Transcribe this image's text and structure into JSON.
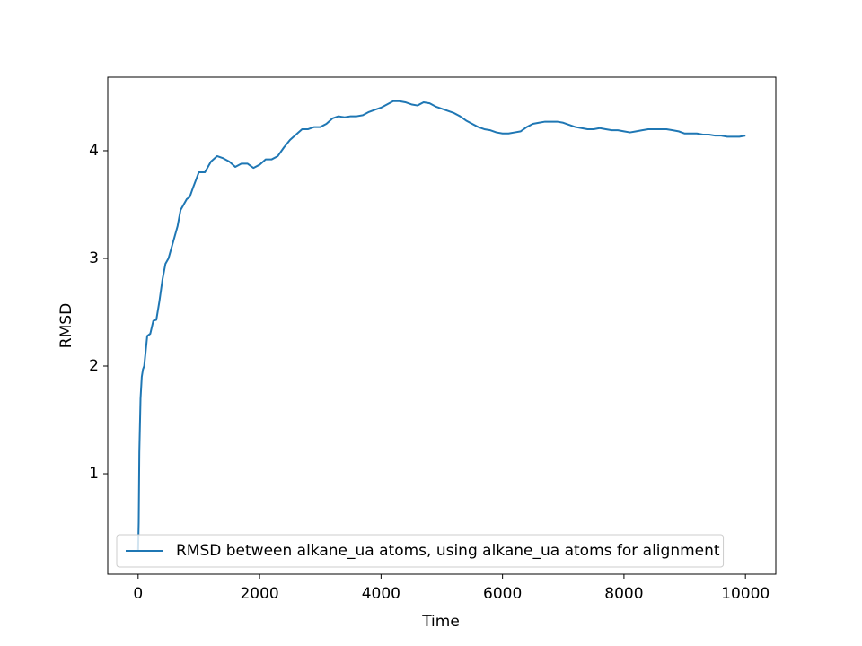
{
  "chart_data": {
    "type": "line",
    "xlabel": "Time",
    "ylabel": "RMSD",
    "xlim": [
      -500,
      10500
    ],
    "ylim": [
      0.067,
      4.683
    ],
    "xticks": [
      0,
      2000,
      4000,
      6000,
      8000,
      10000
    ],
    "yticks": [
      1,
      2,
      3,
      4
    ],
    "legend_loc": "lower right",
    "x": [
      0,
      10,
      20,
      40,
      60,
      80,
      100,
      150,
      200,
      250,
      300,
      350,
      400,
      450,
      500,
      550,
      600,
      650,
      700,
      750,
      800,
      850,
      900,
      1000,
      1100,
      1200,
      1300,
      1400,
      1500,
      1600,
      1700,
      1800,
      1900,
      2000,
      2100,
      2200,
      2300,
      2400,
      2500,
      2600,
      2700,
      2800,
      2900,
      3000,
      3100,
      3200,
      3300,
      3400,
      3500,
      3600,
      3700,
      3800,
      3900,
      4000,
      4100,
      4200,
      4300,
      4400,
      4500,
      4600,
      4700,
      4800,
      4900,
      5000,
      5100,
      5200,
      5300,
      5400,
      5500,
      5600,
      5700,
      5800,
      5900,
      6000,
      6100,
      6200,
      6300,
      6400,
      6500,
      6600,
      6700,
      6800,
      6900,
      7000,
      7100,
      7200,
      7300,
      7400,
      7500,
      7600,
      7700,
      7800,
      7900,
      8000,
      8100,
      8200,
      8300,
      8400,
      8500,
      8600,
      8700,
      8800,
      8900,
      9000,
      9100,
      9200,
      9300,
      9400,
      9500,
      9600,
      9700,
      9800,
      9900,
      10000
    ],
    "series": [
      {
        "name": "RMSD between alkane_ua atoms, using alkane_ua atoms for alignment",
        "color": "#1f77b4",
        "values": [
          0.28,
          0.55,
          1.2,
          1.7,
          1.9,
          1.97,
          2.0,
          2.28,
          2.3,
          2.42,
          2.43,
          2.6,
          2.8,
          2.95,
          3.0,
          3.1,
          3.2,
          3.3,
          3.45,
          3.5,
          3.55,
          3.57,
          3.65,
          3.8,
          3.8,
          3.9,
          3.95,
          3.93,
          3.9,
          3.85,
          3.88,
          3.88,
          3.84,
          3.87,
          3.92,
          3.92,
          3.95,
          4.03,
          4.1,
          4.15,
          4.2,
          4.2,
          4.22,
          4.22,
          4.25,
          4.3,
          4.32,
          4.31,
          4.32,
          4.32,
          4.33,
          4.36,
          4.38,
          4.4,
          4.43,
          4.46,
          4.46,
          4.45,
          4.43,
          4.42,
          4.45,
          4.44,
          4.41,
          4.39,
          4.37,
          4.35,
          4.32,
          4.28,
          4.25,
          4.22,
          4.2,
          4.19,
          4.17,
          4.16,
          4.16,
          4.17,
          4.18,
          4.22,
          4.25,
          4.26,
          4.27,
          4.27,
          4.27,
          4.26,
          4.24,
          4.22,
          4.21,
          4.2,
          4.2,
          4.21,
          4.2,
          4.19,
          4.19,
          4.18,
          4.17,
          4.18,
          4.19,
          4.2,
          4.2,
          4.2,
          4.2,
          4.19,
          4.18,
          4.16,
          4.16,
          4.16,
          4.15,
          4.15,
          4.14,
          4.14,
          4.13,
          4.13,
          4.13,
          4.14
        ]
      }
    ]
  }
}
